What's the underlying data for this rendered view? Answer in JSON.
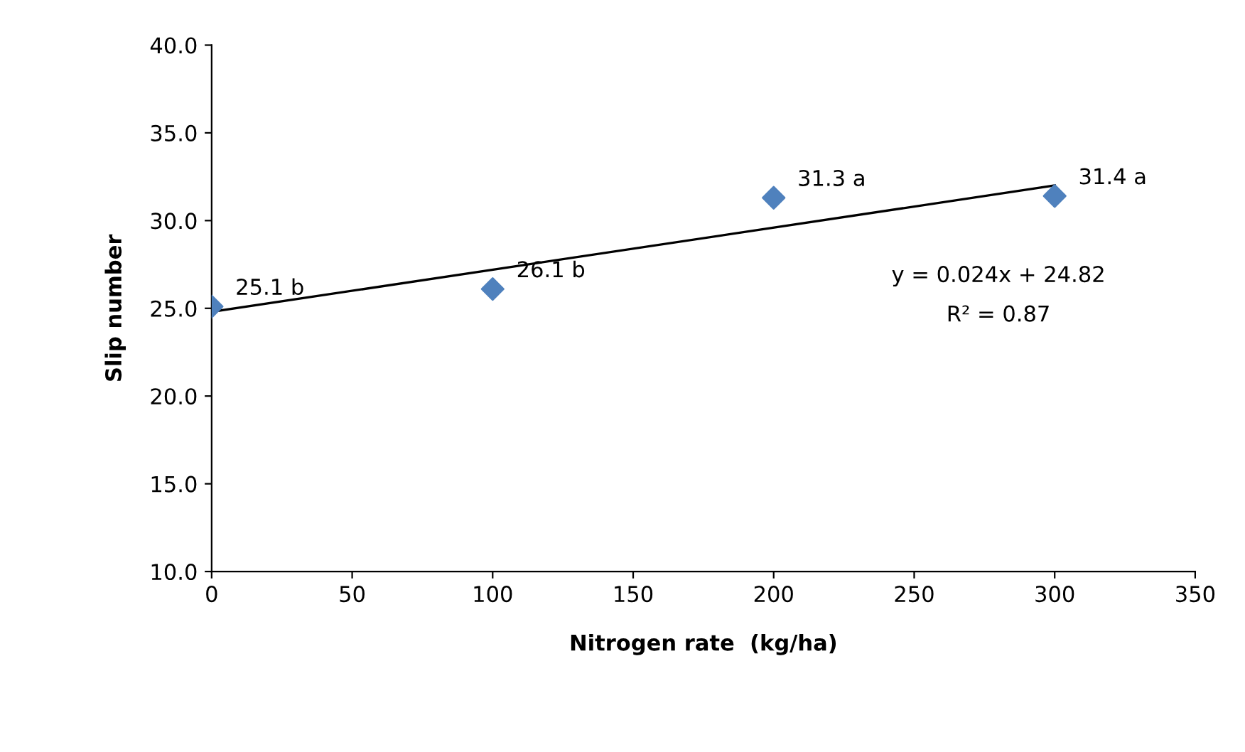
{
  "chart_data": {
    "type": "scatter",
    "xlabel": "Nitrogen rate  (kg/ha)",
    "ylabel": "Slip number",
    "series": [
      {
        "color": "#4f81bd",
        "marker": "diamond",
        "x": [
          0,
          100,
          200,
          300
        ],
        "values": [
          25.1,
          26.1,
          31.3,
          31.4
        ],
        "value_labels": [
          "25.1 b",
          "26.1 b",
          "31.3 a",
          "31.4 a"
        ]
      },
      {
        "type": "line",
        "color": "#000000",
        "marker": "none",
        "line_style": "solid",
        "x": [
          0,
          300
        ],
        "values": [
          24.8,
          32.0
        ]
      }
    ],
    "annotations": [
      "y = 0.024x + 24.82",
      "R² = 0.87"
    ],
    "xlim": [
      0,
      350
    ],
    "xticks": [
      0,
      50,
      100,
      150,
      200,
      250,
      300,
      350
    ],
    "ylim": [
      10,
      40
    ],
    "yticks": [
      {
        "value": 10,
        "label": "10.0"
      },
      {
        "value": 15,
        "label": "15.0"
      },
      {
        "value": 20,
        "label": "20.0"
      },
      {
        "value": 25,
        "label": "25.0"
      },
      {
        "value": 30,
        "label": "30.0"
      },
      {
        "value": 35,
        "label": "35.0"
      },
      {
        "value": 40,
        "label": "40.0"
      }
    ],
    "grid": false
  }
}
